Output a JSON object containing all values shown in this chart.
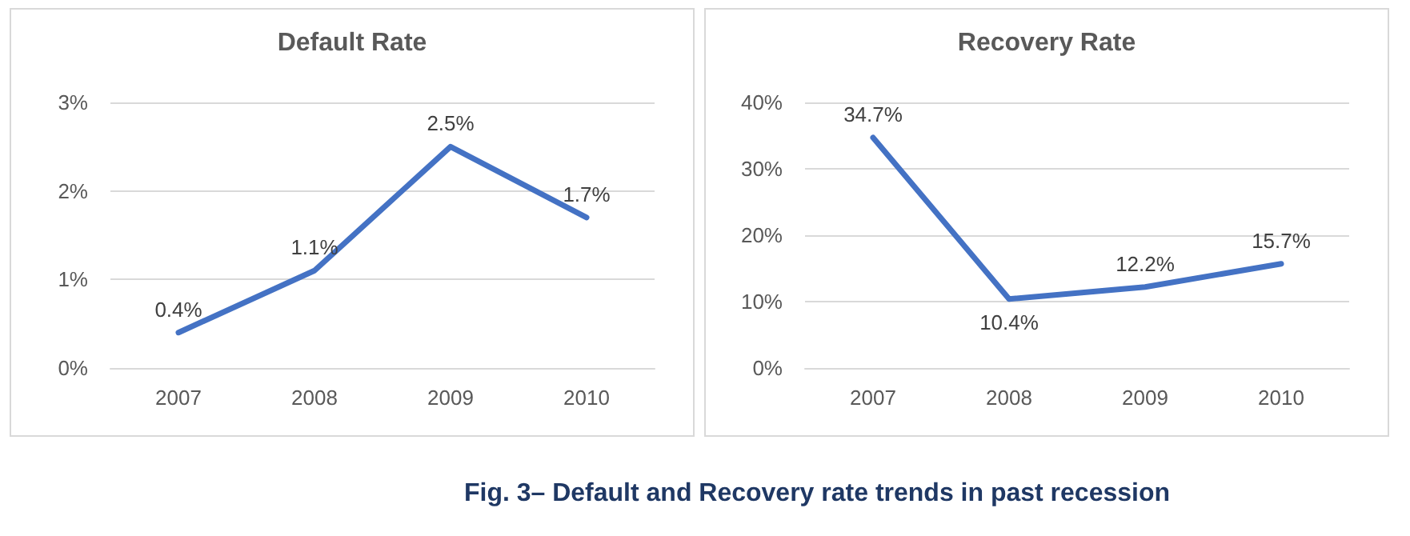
{
  "chart_data": [
    {
      "type": "line",
      "title": "Default Rate",
      "categories": [
        "2007",
        "2008",
        "2009",
        "2010"
      ],
      "series": [
        {
          "color": "#4472c4",
          "values": [
            0.4,
            1.1,
            2.5,
            1.7
          ],
          "value_labels": [
            "0.4%",
            "1.1%",
            "2.5%",
            "1.7%"
          ]
        }
      ],
      "ylim": [
        0,
        3
      ],
      "yticks": [
        {
          "value": 0,
          "label": "0%"
        },
        {
          "value": 1,
          "label": "1%"
        },
        {
          "value": 2,
          "label": "2%"
        },
        {
          "value": 3,
          "label": "3%"
        }
      ],
      "grid": "y",
      "marker": "none",
      "line_style": "solid",
      "annotations": [
        "Fig. 3– Default and Recovery rate trends in past recession"
      ]
    },
    {
      "type": "line",
      "title": "Recovery Rate",
      "categories": [
        "2007",
        "2008",
        "2009",
        "2010"
      ],
      "series": [
        {
          "color": "#4472c4",
          "values": [
            34.7,
            10.4,
            12.2,
            15.7
          ],
          "value_labels": [
            "34.7%",
            "10.4%",
            "12.2%",
            "15.7%"
          ]
        }
      ],
      "ylim": [
        0,
        40
      ],
      "yticks": [
        {
          "value": 0,
          "label": "0%"
        },
        {
          "value": 10,
          "label": "10%"
        },
        {
          "value": 20,
          "label": "20%"
        },
        {
          "value": 30,
          "label": "30%"
        },
        {
          "value": 40,
          "label": "40%"
        }
      ],
      "grid": "y",
      "marker": "none",
      "line_style": "solid"
    }
  ]
}
